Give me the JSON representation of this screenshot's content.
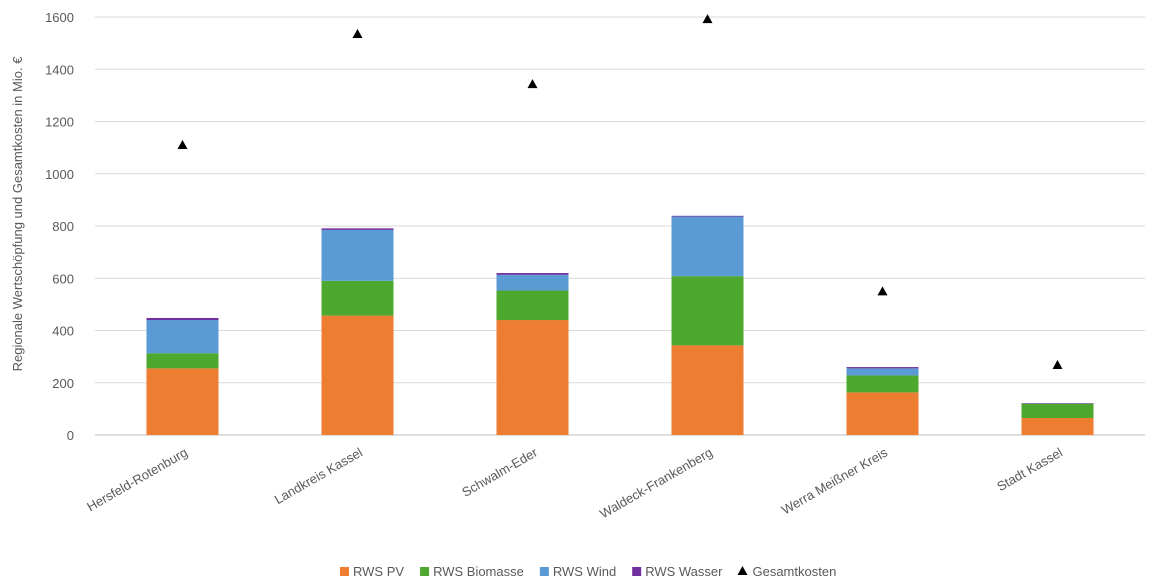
{
  "chart_data": {
    "type": "bar",
    "stacked": true,
    "title": "",
    "xlabel": "",
    "ylabel": "Regionale Wertschöpfung und Gesamtkosten in Mio. €",
    "ylim": [
      0,
      1600
    ],
    "yticks": [
      0,
      200,
      400,
      600,
      800,
      1000,
      1200,
      1400,
      1600
    ],
    "grid": true,
    "legend_position": "bottom",
    "categories": [
      "Hersfeld-Rotenburg",
      "Landkreis Kassel",
      "Schwalm-Eder",
      "Waldeck-Frankenberg",
      "Werra Meißner Kreis",
      "Stadt Kassel"
    ],
    "series": [
      {
        "name": "RWS PV",
        "color": "#ED7D31",
        "values": [
          255,
          457,
          440,
          343,
          163,
          65
        ]
      },
      {
        "name": "RWS Biomasse",
        "color": "#4EA72E",
        "values": [
          58,
          133,
          113,
          265,
          65,
          55
        ]
      },
      {
        "name": "RWS Wind",
        "color": "#5B9BD5",
        "values": [
          127,
          195,
          60,
          228,
          27,
          0
        ]
      },
      {
        "name": "RWS Wasser",
        "color": "#7030A0",
        "values": [
          8,
          6,
          7,
          3,
          5,
          2
        ]
      }
    ],
    "markers": {
      "name": "Gesamtkosten",
      "color": "#000000",
      "marker": "triangle",
      "values": [
        1110,
        1535,
        1343,
        1592,
        550,
        268
      ]
    }
  }
}
